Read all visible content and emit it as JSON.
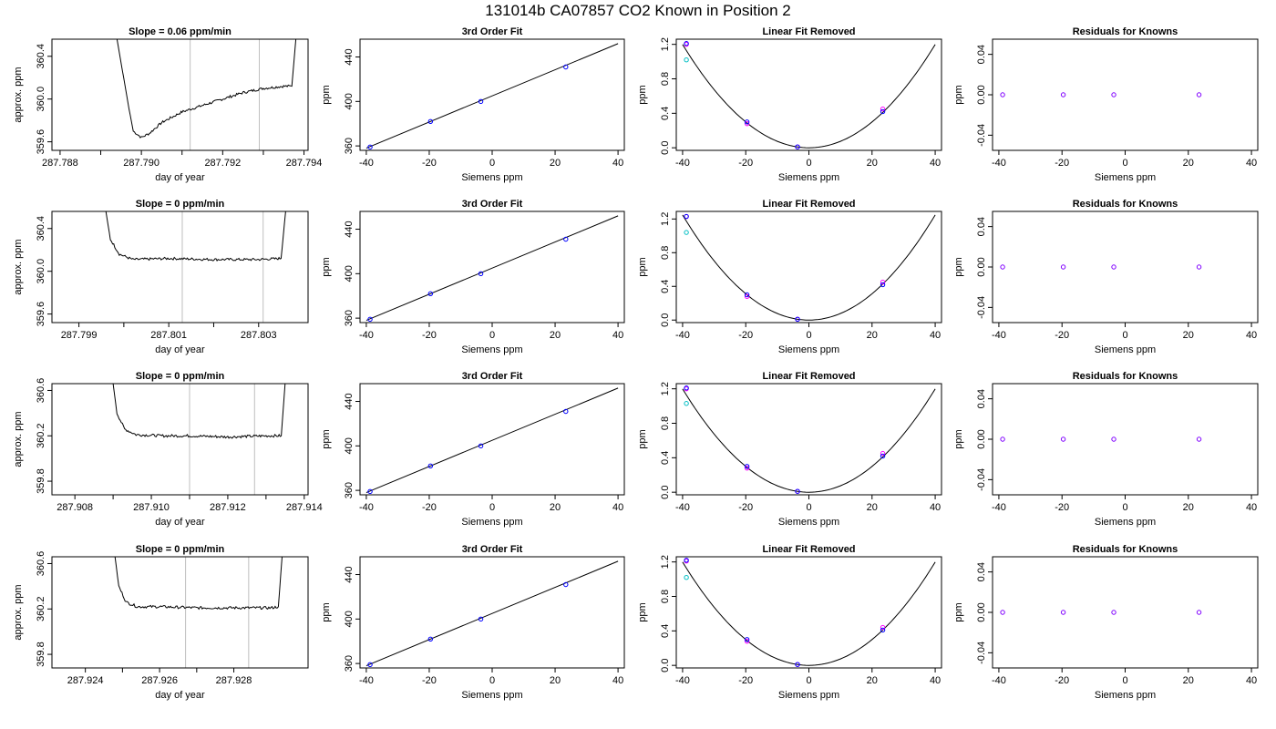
{
  "figure": {
    "title": "131014b     CA07857   CO2 Known in Position  2"
  },
  "colors": {
    "frame": "#000000",
    "trace": "#000000",
    "fit_line": "#000000",
    "window_lines": "#bebebe",
    "point_blue": "#0000ff",
    "point_cyan": "#00bfc4",
    "point_magenta": "#ff00ff",
    "point_purple": "#8000ff"
  },
  "chart_data": [
    {
      "type": "line",
      "row": 0,
      "col": 0,
      "title": "Slope =  0.06  ppm/min",
      "xlabel": "day of year",
      "ylabel": "approx. ppm",
      "xlim": [
        287.7878,
        287.7941
      ],
      "ylim": [
        359.52,
        360.56
      ],
      "xticks": [
        "287.788",
        "287.790",
        "287.792",
        "287.794"
      ],
      "xtick_values": [
        287.788,
        287.79,
        287.792,
        287.794
      ],
      "yticks": [
        "359.6",
        "360.0",
        "360.4"
      ],
      "ytick_values": [
        359.6,
        360.0,
        360.4
      ],
      "window_lines": [
        287.7912,
        287.7929
      ],
      "trace_x": [
        287.7894,
        287.7897,
        287.7898,
        287.79,
        287.7902,
        287.7905,
        287.791,
        287.7915,
        287.792,
        287.7925,
        287.793,
        287.7935,
        287.7937,
        287.7938
      ],
      "trace_y": [
        360.56,
        359.9,
        359.7,
        359.64,
        359.68,
        359.78,
        359.88,
        359.94,
        360.0,
        360.06,
        360.1,
        360.12,
        360.12,
        360.56
      ],
      "noise": 0.012
    },
    {
      "type": "line",
      "row": 0,
      "col": 1,
      "title": "3rd Order Fit",
      "xlabel": "Siemens ppm",
      "ylabel": "ppm",
      "xlim": [
        -42,
        42
      ],
      "ylim": [
        356,
        456
      ],
      "xticks": [
        "-40",
        "-20",
        "0",
        "20",
        "40"
      ],
      "xtick_values": [
        -40,
        -20,
        0,
        20,
        40
      ],
      "yticks": [
        "360",
        "400",
        "440"
      ],
      "ytick_values": [
        360,
        400,
        440
      ],
      "line_x": [
        -40,
        40
      ],
      "line_y": [
        358,
        452
      ],
      "points_x": [
        -38.8,
        -19.6,
        -3.6,
        23.4
      ],
      "points_y": [
        359,
        382,
        400,
        431
      ]
    },
    {
      "type": "scatter",
      "row": 0,
      "col": 2,
      "title": "Linear Fit Removed",
      "xlabel": "Siemens ppm",
      "ylabel": "ppm",
      "xlim": [
        -42,
        42
      ],
      "ylim": [
        -0.03,
        1.26
      ],
      "xticks": [
        "-40",
        "-20",
        "0",
        "20",
        "40"
      ],
      "xtick_values": [
        -40,
        -20,
        0,
        20,
        40
      ],
      "yticks": [
        "0.0",
        "0.4",
        "0.8",
        "1.2"
      ],
      "ytick_values": [
        0.0,
        0.4,
        0.8,
        1.2
      ],
      "curve": {
        "a": 0.000749,
        "x0": -0.0,
        "c": 0.0
      },
      "points_x": [
        -38.8,
        -19.6,
        -3.6,
        23.4
      ],
      "points_blue": [
        1.21,
        0.3,
        0.01,
        0.42
      ],
      "points_magenta": [
        1.2,
        0.28,
        0.01,
        0.45
      ],
      "points_cyan": [
        1.02
      ]
    },
    {
      "type": "scatter",
      "row": 0,
      "col": 3,
      "title": "Residuals for Knowns",
      "xlabel": "Siemens ppm",
      "ylabel": "ppm",
      "xlim": [
        -42,
        42
      ],
      "ylim": [
        -0.055,
        0.055
      ],
      "xticks": [
        "-40",
        "-20",
        "0",
        "20",
        "40"
      ],
      "xtick_values": [
        -40,
        -20,
        0,
        20,
        40
      ],
      "yticks": [
        "-0.04",
        "0.00",
        "0.04"
      ],
      "ytick_values": [
        -0.04,
        0.0,
        0.04
      ],
      "points_x": [
        -38.8,
        -19.6,
        -3.6,
        23.4
      ],
      "points_y": [
        0,
        0,
        0,
        0
      ]
    },
    {
      "type": "line",
      "row": 1,
      "col": 0,
      "title": "Slope =  0  ppm/min",
      "xlabel": "day of year",
      "ylabel": "approx. ppm",
      "xlim": [
        287.7984,
        287.8041
      ],
      "ylim": [
        359.52,
        360.56
      ],
      "xticks": [
        "287.799",
        "287.801",
        "287.803"
      ],
      "xtick_values": [
        287.799,
        287.801,
        287.803
      ],
      "yticks": [
        "359.6",
        "360.0",
        "360.4"
      ],
      "ytick_values": [
        359.6,
        360.0,
        360.4
      ],
      "window_lines": [
        287.8013,
        287.8031
      ],
      "trace_x": [
        287.7996,
        287.7997,
        287.7999,
        287.8002,
        287.801,
        287.802,
        287.803,
        287.8035,
        287.8036
      ],
      "trace_y": [
        360.56,
        360.3,
        360.16,
        360.11,
        360.12,
        360.11,
        360.11,
        360.12,
        360.56
      ],
      "noise": 0.012
    },
    {
      "type": "line",
      "row": 1,
      "col": 1,
      "title": "3rd Order Fit",
      "xlabel": "Siemens ppm",
      "ylabel": "ppm",
      "xlim": [
        -42,
        42
      ],
      "ylim": [
        356,
        456
      ],
      "xticks": [
        "-40",
        "-20",
        "0",
        "20",
        "40"
      ],
      "xtick_values": [
        -40,
        -20,
        0,
        20,
        40
      ],
      "yticks": [
        "360",
        "400",
        "440"
      ],
      "ytick_values": [
        360,
        400,
        440
      ],
      "line_x": [
        -40,
        40
      ],
      "line_y": [
        358,
        452
      ],
      "points_x": [
        -38.8,
        -19.6,
        -3.6,
        23.4
      ],
      "points_y": [
        359,
        382,
        400,
        431
      ]
    },
    {
      "type": "scatter",
      "row": 1,
      "col": 2,
      "title": "Linear Fit Removed",
      "xlabel": "Siemens ppm",
      "ylabel": "ppm",
      "xlim": [
        -42,
        42
      ],
      "ylim": [
        -0.03,
        1.29
      ],
      "xticks": [
        "-40",
        "-20",
        "0",
        "20",
        "40"
      ],
      "xtick_values": [
        -40,
        -20,
        0,
        20,
        40
      ],
      "yticks": [
        "0.0",
        "0.4",
        "0.8",
        "1.2"
      ],
      "ytick_values": [
        0.0,
        0.4,
        0.8,
        1.2
      ],
      "curve": {
        "a": 0.00078,
        "x0": -0.0,
        "c": 0.0
      },
      "points_x": [
        -38.8,
        -19.6,
        -3.6,
        23.4
      ],
      "points_blue": [
        1.23,
        0.3,
        0.01,
        0.42
      ],
      "points_magenta": [
        1.23,
        0.28,
        0.01,
        0.45
      ],
      "points_cyan": [
        1.04
      ]
    },
    {
      "type": "scatter",
      "row": 1,
      "col": 3,
      "title": "Residuals for Knowns",
      "xlabel": "Siemens ppm",
      "ylabel": "ppm",
      "xlim": [
        -42,
        42
      ],
      "ylim": [
        -0.055,
        0.055
      ],
      "xticks": [
        "-40",
        "-20",
        "0",
        "20",
        "40"
      ],
      "xtick_values": [
        -40,
        -20,
        0,
        20,
        40
      ],
      "yticks": [
        "-0.04",
        "0.00",
        "0.04"
      ],
      "ytick_values": [
        -0.04,
        0.0,
        0.04
      ],
      "points_x": [
        -38.8,
        -19.6,
        -3.6,
        23.4
      ],
      "points_y": [
        0,
        0,
        0,
        0
      ]
    },
    {
      "type": "line",
      "row": 2,
      "col": 0,
      "title": "Slope =  0  ppm/min",
      "xlabel": "day of year",
      "ylabel": "approx. ppm",
      "xlim": [
        287.9074,
        287.9141
      ],
      "ylim": [
        359.68,
        360.66
      ],
      "xticks": [
        "287.908",
        "287.910",
        "287.912",
        "287.914"
      ],
      "xtick_values": [
        287.908,
        287.91,
        287.912,
        287.914
      ],
      "yticks": [
        "359.8",
        "360.2",
        "360.6"
      ],
      "ytick_values": [
        359.8,
        360.2,
        360.6
      ],
      "window_lines": [
        287.911,
        287.9127
      ],
      "trace_x": [
        287.909,
        287.9091,
        287.9093,
        287.9096,
        287.9103,
        287.911,
        287.912,
        287.913,
        287.9134,
        287.9135
      ],
      "trace_y": [
        360.66,
        360.4,
        360.26,
        360.21,
        360.2,
        360.2,
        360.19,
        360.2,
        360.2,
        360.66
      ],
      "noise": 0.012
    },
    {
      "type": "line",
      "row": 2,
      "col": 1,
      "title": "3rd Order Fit",
      "xlabel": "Siemens ppm",
      "ylabel": "ppm",
      "xlim": [
        -42,
        42
      ],
      "ylim": [
        356,
        456
      ],
      "xticks": [
        "-40",
        "-20",
        "0",
        "20",
        "40"
      ],
      "xtick_values": [
        -40,
        -20,
        0,
        20,
        40
      ],
      "yticks": [
        "360",
        "400",
        "440"
      ],
      "ytick_values": [
        360,
        400,
        440
      ],
      "line_x": [
        -40,
        40
      ],
      "line_y": [
        358,
        452
      ],
      "points_x": [
        -38.8,
        -19.6,
        -3.6,
        23.4
      ],
      "points_y": [
        359,
        382,
        400,
        431
      ]
    },
    {
      "type": "scatter",
      "row": 2,
      "col": 2,
      "title": "Linear Fit Removed",
      "xlabel": "Siemens ppm",
      "ylabel": "ppm",
      "xlim": [
        -42,
        42
      ],
      "ylim": [
        -0.03,
        1.26
      ],
      "xticks": [
        "-40",
        "-20",
        "0",
        "20",
        "40"
      ],
      "xtick_values": [
        -40,
        -20,
        0,
        20,
        40
      ],
      "yticks": [
        "0.0",
        "0.4",
        "0.8",
        "1.2"
      ],
      "ytick_values": [
        0.0,
        0.4,
        0.8,
        1.2
      ],
      "curve": {
        "a": 0.000749,
        "x0": -0.0,
        "c": 0.0
      },
      "points_x": [
        -38.8,
        -19.6,
        -3.6,
        23.4
      ],
      "points_blue": [
        1.21,
        0.3,
        0.01,
        0.42
      ],
      "points_magenta": [
        1.2,
        0.28,
        0.01,
        0.45
      ],
      "points_cyan": [
        1.03
      ]
    },
    {
      "type": "scatter",
      "row": 2,
      "col": 3,
      "title": "Residuals for Knowns",
      "xlabel": "Siemens ppm",
      "ylabel": "ppm",
      "xlim": [
        -42,
        42
      ],
      "ylim": [
        -0.055,
        0.055
      ],
      "xticks": [
        "-40",
        "-20",
        "0",
        "20",
        "40"
      ],
      "xtick_values": [
        -40,
        -20,
        0,
        20,
        40
      ],
      "yticks": [
        "-0.04",
        "0.00",
        "0.04"
      ],
      "ytick_values": [
        -0.04,
        0.0,
        0.04
      ],
      "points_x": [
        -38.8,
        -19.6,
        -3.6,
        23.4
      ],
      "points_y": [
        0,
        0,
        0,
        0
      ]
    },
    {
      "type": "line",
      "row": 3,
      "col": 0,
      "title": "Slope =  0  ppm/min",
      "xlabel": "day of year",
      "ylabel": "approx. ppm",
      "xlim": [
        287.9231,
        287.93
      ],
      "ylim": [
        359.68,
        360.66
      ],
      "xticks": [
        "287.924",
        "287.926",
        "287.928"
      ],
      "xtick_values": [
        287.924,
        287.926,
        287.928
      ],
      "yticks": [
        "359.8",
        "360.2",
        "360.6"
      ],
      "ytick_values": [
        359.8,
        360.2,
        360.6
      ],
      "window_lines": [
        287.9267,
        287.9284
      ],
      "trace_x": [
        287.9248,
        287.9249,
        287.9251,
        287.9254,
        287.926,
        287.927,
        287.928,
        287.929,
        287.9292,
        287.9293
      ],
      "trace_y": [
        360.66,
        360.4,
        360.26,
        360.22,
        360.22,
        360.21,
        360.21,
        360.21,
        360.22,
        360.66
      ],
      "noise": 0.012
    },
    {
      "type": "line",
      "row": 3,
      "col": 1,
      "title": "3rd Order Fit",
      "xlabel": "Siemens ppm",
      "ylabel": "ppm",
      "xlim": [
        -42,
        42
      ],
      "ylim": [
        356,
        456
      ],
      "xticks": [
        "-40",
        "-20",
        "0",
        "20",
        "40"
      ],
      "xtick_values": [
        -40,
        -20,
        0,
        20,
        40
      ],
      "yticks": [
        "360",
        "400",
        "440"
      ],
      "ytick_values": [
        360,
        400,
        440
      ],
      "line_x": [
        -40,
        40
      ],
      "line_y": [
        358,
        452
      ],
      "points_x": [
        -38.8,
        -19.6,
        -3.6,
        23.4
      ],
      "points_y": [
        359,
        382,
        400,
        431
      ]
    },
    {
      "type": "scatter",
      "row": 3,
      "col": 2,
      "title": "Linear Fit Removed",
      "xlabel": "Siemens ppm",
      "ylabel": "ppm",
      "xlim": [
        -42,
        42
      ],
      "ylim": [
        -0.03,
        1.26
      ],
      "xticks": [
        "-40",
        "-20",
        "0",
        "20",
        "40"
      ],
      "xtick_values": [
        -40,
        -20,
        0,
        20,
        40
      ],
      "yticks": [
        "0.0",
        "0.4",
        "0.8",
        "1.2"
      ],
      "ytick_values": [
        0.0,
        0.4,
        0.8,
        1.2
      ],
      "curve": {
        "a": 0.000749,
        "x0": -0.0,
        "c": 0.0
      },
      "points_x": [
        -38.8,
        -19.6,
        -3.6,
        23.4
      ],
      "points_blue": [
        1.22,
        0.3,
        0.01,
        0.41
      ],
      "points_magenta": [
        1.21,
        0.28,
        0.01,
        0.44
      ],
      "points_cyan": [
        1.02
      ]
    },
    {
      "type": "scatter",
      "row": 3,
      "col": 3,
      "title": "Residuals for Knowns",
      "xlabel": "Siemens ppm",
      "ylabel": "ppm",
      "xlim": [
        -42,
        42
      ],
      "ylim": [
        -0.055,
        0.055
      ],
      "xticks": [
        "-40",
        "-20",
        "0",
        "20",
        "40"
      ],
      "xtick_values": [
        -40,
        -20,
        0,
        20,
        40
      ],
      "yticks": [
        "-0.04",
        "0.00",
        "0.04"
      ],
      "ytick_values": [
        -0.04,
        0.0,
        0.04
      ],
      "points_x": [
        -38.8,
        -19.6,
        -3.6,
        23.4
      ],
      "points_y": [
        0,
        0,
        0,
        0
      ]
    }
  ]
}
